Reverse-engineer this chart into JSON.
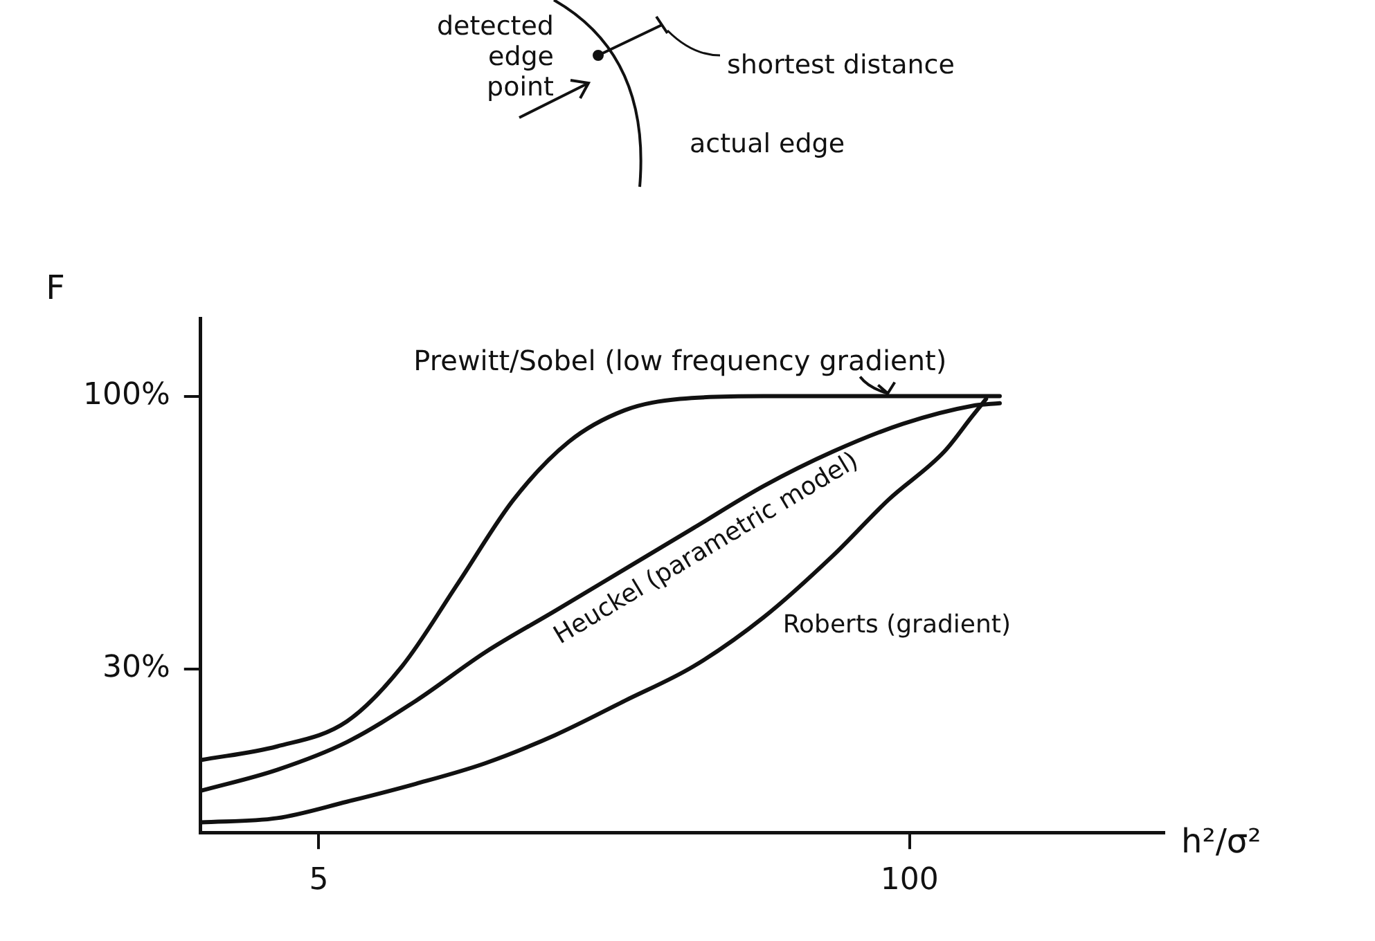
{
  "chart_data": {
    "type": "line",
    "xlabel": "h²/σ²",
    "ylabel": "F",
    "xlim": [
      -14,
      141
    ],
    "ylim": [
      -12,
      120
    ],
    "xticks": [
      5,
      100
    ],
    "yticks": [
      {
        "value": 30,
        "label": "30%"
      },
      {
        "value": 100,
        "label": "100%"
      }
    ],
    "grid": false,
    "legend": false,
    "marker": "none",
    "line_style": "solid",
    "series": [
      {
        "name": "Prewitt/Sobel (low frequency gradient)",
        "color": "#111111",
        "x": [
          -14,
          -1.7,
          9.5,
          18.4,
          27.4,
          36.3,
          45.2,
          54.2,
          63.1,
          76.5,
          98.9,
          114.5
        ],
        "values": [
          6.6,
          10.1,
          16.5,
          30.7,
          52,
          73.4,
          88.3,
          96.4,
          99.3,
          100,
          100,
          100
        ]
      },
      {
        "name": "Heuckel (parametric model)",
        "color": "#111111",
        "x": [
          -14,
          -1.7,
          9.5,
          20.6,
          31.8,
          43,
          54.2,
          65.3,
          76.5,
          87.7,
          98.9,
          110,
          114.5
        ],
        "values": [
          -1.3,
          4.1,
          11.2,
          21.8,
          34.3,
          44.9,
          55.6,
          66.2,
          76.9,
          85.8,
          92.9,
          97.5,
          98.2
        ]
      },
      {
        "name": "Roberts (gradient)",
        "color": "#111111",
        "x": [
          -14,
          -1.7,
          9.5,
          20.6,
          31.8,
          43,
          54.2,
          65.3,
          76.5,
          87.7,
          96.6,
          105.6,
          110,
          112.3
        ],
        "values": [
          -9.4,
          -8.3,
          -4.1,
          0.5,
          5.8,
          13,
          21.8,
          30.7,
          43.2,
          59.1,
          73.4,
          85.8,
          94.7,
          99.3
        ]
      }
    ],
    "annotations": [
      "detected edge point",
      "shortest distance",
      "actual edge"
    ]
  }
}
